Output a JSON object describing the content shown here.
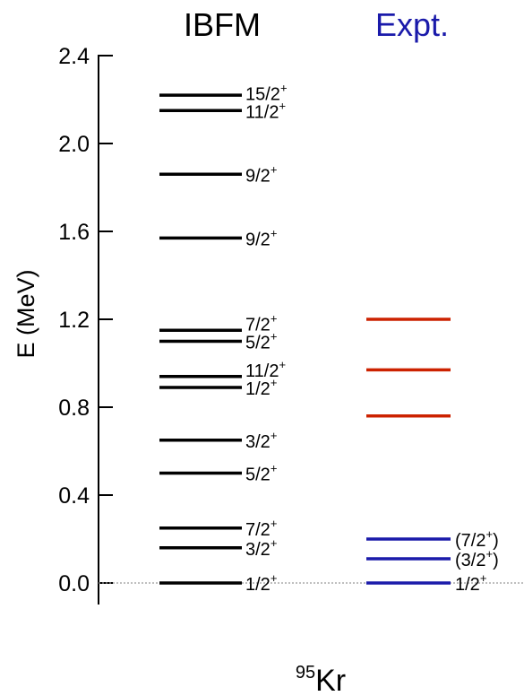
{
  "chart_data": {
    "type": "level-scheme",
    "ylabel": "E (MeV)",
    "ylim": [
      0.0,
      2.4
    ],
    "yticks": [
      "0.0",
      "0.4",
      "0.8",
      "1.2",
      "1.6",
      "2.0",
      "2.4"
    ],
    "nucleus": {
      "mass": "95",
      "symbol": "Kr"
    },
    "columns": [
      {
        "name": "IBFM",
        "title_color": "#000000",
        "levels": [
          {
            "energy": 0.0,
            "color": "#000000",
            "label": "1/2",
            "parity": "+"
          },
          {
            "energy": 0.16,
            "color": "#000000",
            "label": "3/2",
            "parity": "+"
          },
          {
            "energy": 0.25,
            "color": "#000000",
            "label": "7/2",
            "parity": "+"
          },
          {
            "energy": 0.5,
            "color": "#000000",
            "label": "5/2",
            "parity": "+"
          },
          {
            "energy": 0.65,
            "color": "#000000",
            "label": "3/2",
            "parity": "+"
          },
          {
            "energy": 0.89,
            "color": "#000000",
            "label": "1/2",
            "parity": "+"
          },
          {
            "energy": 0.94,
            "color": "#000000",
            "label": "11/2",
            "parity": "+"
          },
          {
            "energy": 1.1,
            "color": "#000000",
            "label": "5/2",
            "parity": "+"
          },
          {
            "energy": 1.15,
            "color": "#000000",
            "label": "7/2",
            "parity": "+"
          },
          {
            "energy": 1.57,
            "color": "#000000",
            "label": "9/2",
            "parity": "+"
          },
          {
            "energy": 1.86,
            "color": "#000000",
            "label": "9/2",
            "parity": "+"
          },
          {
            "energy": 2.15,
            "color": "#000000",
            "label": "11/2",
            "parity": "+"
          },
          {
            "energy": 2.22,
            "color": "#000000",
            "label": "15/2",
            "parity": "+"
          }
        ]
      },
      {
        "name": "Expt.",
        "title_color": "#1a1aaa",
        "levels": [
          {
            "energy": 0.0,
            "color": "#1a1aaa",
            "label": "1/2",
            "parity": "+"
          },
          {
            "energy": 0.11,
            "color": "#1a1aaa",
            "label": "(3/2",
            "parity": "+",
            "close": ")"
          },
          {
            "energy": 0.2,
            "color": "#1a1aaa",
            "label": "(7/2",
            "parity": "+",
            "close": ")"
          },
          {
            "energy": 0.76,
            "color": "#cc2200",
            "label": ""
          },
          {
            "energy": 0.97,
            "color": "#cc2200",
            "label": ""
          },
          {
            "energy": 1.2,
            "color": "#cc2200",
            "label": ""
          }
        ]
      }
    ]
  }
}
